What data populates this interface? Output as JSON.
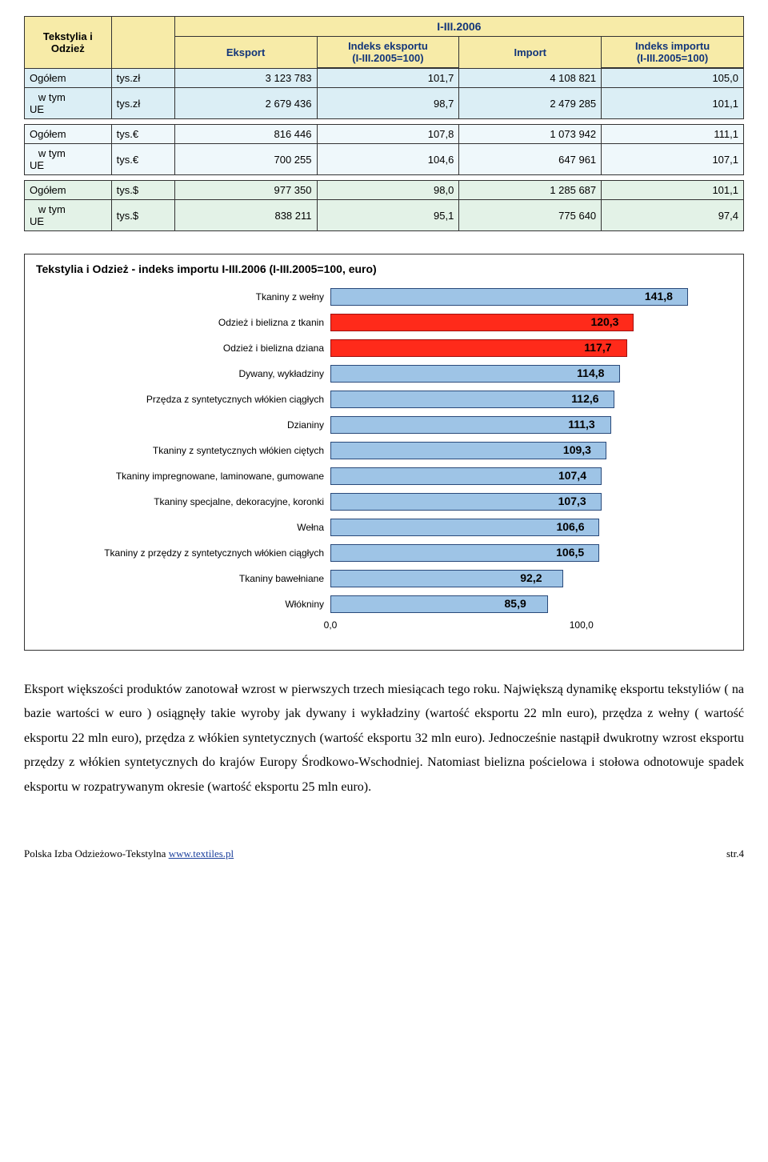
{
  "table": {
    "title": "Tekstylia i Odzież",
    "period": "I-III.2006",
    "col_eksport": "Eksport",
    "col_idx_eksport_1": "Indeks eksportu",
    "col_idx_eksport_2": "(I-III.2005=100)",
    "col_import": "Import",
    "col_idx_import_1": "Indeks importu",
    "col_idx_import_2": "(I-III.2005=100)",
    "row_ogolem": "Ogółem",
    "row_wtym": "   w tym\nUE",
    "groups": [
      {
        "class": "body-zl",
        "unit": "tys.zł",
        "rows": [
          {
            "c1": "3 123 783",
            "c2": "101,7",
            "c3": "4 108 821",
            "c4": "105,0"
          },
          {
            "c1": "2 679 436",
            "c2": "98,7",
            "c3": "2 479 285",
            "c4": "101,1"
          }
        ]
      },
      {
        "class": "body-eur",
        "unit": "tys.€",
        "rows": [
          {
            "c1": "816 446",
            "c2": "107,8",
            "c3": "1 073 942",
            "c4": "111,1"
          },
          {
            "c1": "700 255",
            "c2": "104,6",
            "c3": "647 961",
            "c4": "107,1"
          }
        ]
      },
      {
        "class": "body-usd",
        "unit": "tys.$",
        "rows": [
          {
            "c1": "977 350",
            "c2": "98,0",
            "c3": "1 285 687",
            "c4": "101,1"
          },
          {
            "c1": "838 211",
            "c2": "95,1",
            "c3": "775 640",
            "c4": "97,4"
          }
        ]
      }
    ]
  },
  "chart": {
    "title": "Tekstylia i Odzież - indeks importu I-III.2006 (I-III.2005=100, euro)",
    "xmax": 160,
    "ticks": [
      {
        "pos": 0,
        "label": "0,0"
      },
      {
        "pos": 100,
        "label": "100,0"
      }
    ],
    "default_fill": "#9ec4e6",
    "default_border": "#2a4a7a",
    "highlight_fill": "#ff2a1a",
    "highlight_border": "#a01010",
    "label_fontsize": 12,
    "value_fontsize": 14,
    "bars": [
      {
        "label": "Tkaniny z wełny",
        "value": 141.8,
        "text": "141,8",
        "highlight": false
      },
      {
        "label": "Odzież i bielizna z tkanin",
        "value": 120.3,
        "text": "120,3",
        "highlight": true
      },
      {
        "label": "Odzież i bielizna dziana",
        "value": 117.7,
        "text": "117,7",
        "highlight": true
      },
      {
        "label": "Dywany, wykładziny",
        "value": 114.8,
        "text": "114,8",
        "highlight": false
      },
      {
        "label": "Przędza z syntetycznych włókien ciągłych",
        "value": 112.6,
        "text": "112,6",
        "highlight": false
      },
      {
        "label": "Dzianiny",
        "value": 111.3,
        "text": "111,3",
        "highlight": false
      },
      {
        "label": "Tkaniny z syntetycznych włókien ciętych",
        "value": 109.3,
        "text": "109,3",
        "highlight": false
      },
      {
        "label": "Tkaniny impregnowane, laminowane, gumowane",
        "value": 107.4,
        "text": "107,4",
        "highlight": false
      },
      {
        "label": "Tkaniny specjalne, dekoracyjne, koronki",
        "value": 107.3,
        "text": "107,3",
        "highlight": false
      },
      {
        "label": "Wełna",
        "value": 106.6,
        "text": "106,6",
        "highlight": false
      },
      {
        "label": "Tkaniny z przędzy z syntetycznych włókien ciągłych",
        "value": 106.5,
        "text": "106,5",
        "highlight": false
      },
      {
        "label": "Tkaniny bawełniane",
        "value": 92.2,
        "text": "92,2",
        "highlight": false
      },
      {
        "label": "Włókniny",
        "value": 85.9,
        "text": "85,9",
        "highlight": false
      }
    ]
  },
  "paragraph": "Eksport większości produktów zanotował wzrost w pierwszych trzech miesiącach tego roku. Największą dynamikę eksportu tekstyliów ( na bazie wartości w euro ) osiągnęły takie wyroby jak dywany i wykładziny (wartość eksportu 22 mln euro), przędza z wełny ( wartość eksportu 22 mln euro), przędza z włókien syntetycznych (wartość eksportu 32 mln euro). Jednocześnie nastąpił dwukrotny wzrost eksportu przędzy z włókien syntetycznych do krajów Europy Środkowo-Wschodniej. Natomiast bielizna pościelowa i stołowa odnotowuje spadek eksportu w rozpatrywanym okresie (wartość eksportu 25 mln euro).",
  "footer": {
    "left1": "Polska Izba Odzieżowo-Tekstylna ",
    "link": "www.textiles.pl",
    "right": "str.4"
  }
}
